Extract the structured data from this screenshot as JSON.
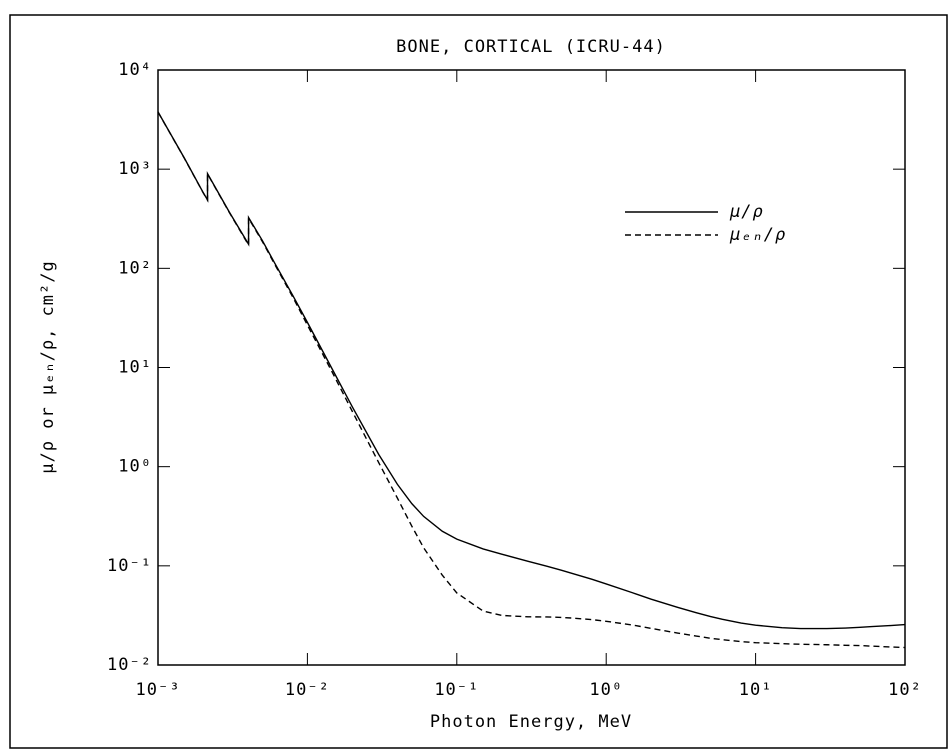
{
  "chart_data": {
    "type": "line",
    "title": "BONE, CORTICAL (ICRU-44)",
    "x_label": "Photon Energy, MeV",
    "y_label": "μ/ρ or μₑₙ/ρ, cm²/g",
    "x": [
      0.001,
      0.0015,
      0.002,
      0.002145,
      0.002145,
      0.003,
      0.004038,
      0.004038,
      0.005,
      0.006,
      0.008,
      0.01,
      0.015,
      0.02,
      0.03,
      0.04,
      0.05,
      0.06,
      0.08,
      0.1,
      0.15,
      0.2,
      0.3,
      0.4,
      0.5,
      0.6,
      0.8,
      1,
      1.5,
      2,
      3,
      4,
      5,
      6,
      8,
      10,
      15,
      20,
      30,
      40,
      50,
      60,
      80,
      100
    ],
    "series": [
      {
        "name": "μ/ρ",
        "color": "#000000",
        "dash": "solid",
        "values": [
          3780,
          1295,
          586,
          490,
          900,
          370,
          175,
          325,
          190,
          115,
          53,
          28.5,
          9.03,
          4.0,
          1.33,
          0.665,
          0.424,
          0.315,
          0.223,
          0.186,
          0.148,
          0.131,
          0.111,
          0.0991,
          0.0903,
          0.0834,
          0.0733,
          0.0657,
          0.0535,
          0.0461,
          0.0382,
          0.0337,
          0.0308,
          0.0289,
          0.0265,
          0.0252,
          0.0238,
          0.0233,
          0.0233,
          0.0236,
          0.024,
          0.0244,
          0.025,
          0.0256
        ]
      },
      {
        "name": "μₑₙ/ρ",
        "color": "#000000",
        "dash": "dashed",
        "values": [
          3765,
          1290,
          583,
          487,
          895,
          366,
          172,
          320,
          186,
          112,
          51,
          26.8,
          8.39,
          3.6,
          1.1,
          0.483,
          0.251,
          0.152,
          0.0804,
          0.0533,
          0.035,
          0.0316,
          0.0306,
          0.0305,
          0.0302,
          0.0297,
          0.0287,
          0.0276,
          0.0253,
          0.0234,
          0.021,
          0.0196,
          0.0186,
          0.018,
          0.0172,
          0.0168,
          0.0164,
          0.0162,
          0.016,
          0.0158,
          0.0157,
          0.0155,
          0.0152,
          0.015
        ]
      }
    ],
    "xscale": "log",
    "yscale": "log",
    "xlim": [
      0.001,
      100
    ],
    "ylim": [
      0.01,
      10000
    ],
    "xticks": [
      {
        "value": 0.001,
        "label": "10⁻³"
      },
      {
        "value": 0.01,
        "label": "10⁻²"
      },
      {
        "value": 0.1,
        "label": "10⁻¹"
      },
      {
        "value": 1,
        "label": "10⁰"
      },
      {
        "value": 10,
        "label": "10¹"
      },
      {
        "value": 100,
        "label": "10²"
      }
    ],
    "yticks": [
      {
        "value": 0.01,
        "label": "10⁻²"
      },
      {
        "value": 0.1,
        "label": "10⁻¹"
      },
      {
        "value": 1,
        "label": "10⁰"
      },
      {
        "value": 10,
        "label": "10¹"
      },
      {
        "value": 100,
        "label": "10²"
      },
      {
        "value": 1000,
        "label": "10³"
      },
      {
        "value": 10000,
        "label": "10⁴"
      }
    ],
    "legend": "upper-right"
  }
}
